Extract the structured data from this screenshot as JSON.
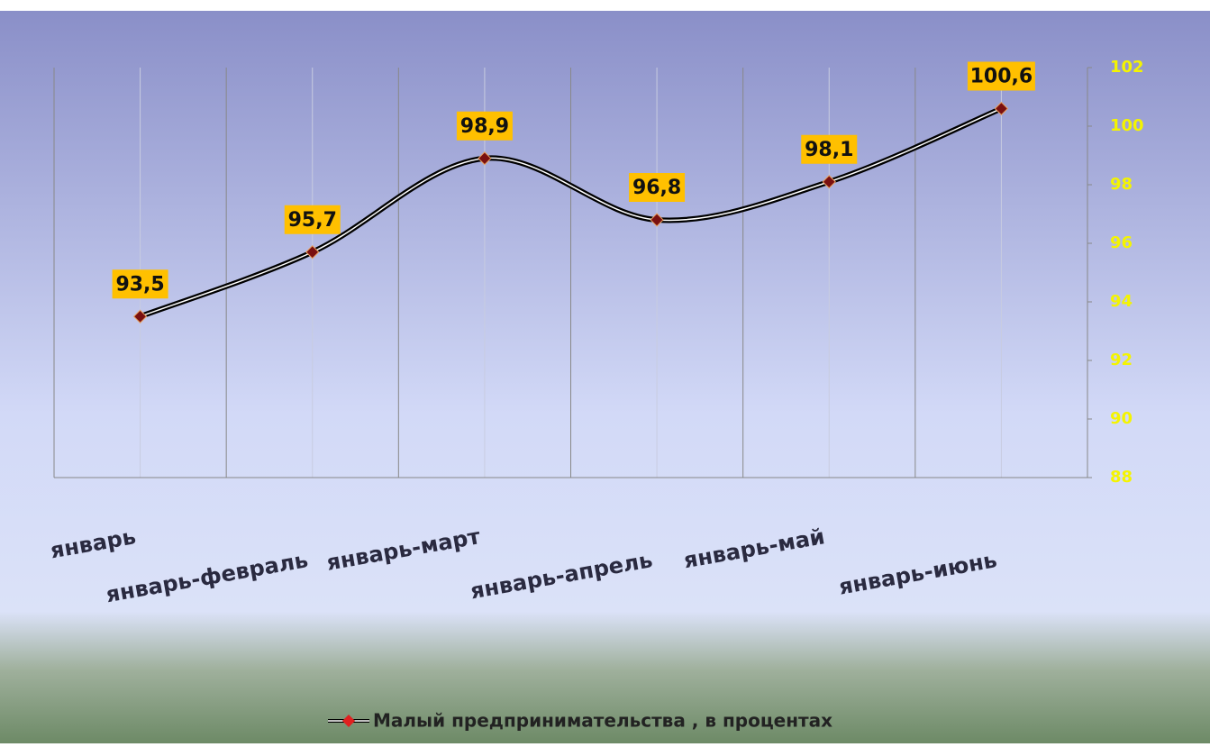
{
  "chart_data": {
    "type": "line",
    "categories": [
      "январь",
      "январь-февраль",
      "январь-март",
      "январь-апрель",
      "январь-май",
      "январь-июнь"
    ],
    "series": [
      {
        "name": "Малый предпринимательства , в процентах",
        "color": "#000000",
        "marker_color": "#7a1010",
        "values": [
          93.5,
          95.7,
          98.9,
          96.8,
          98.1,
          100.6
        ],
        "value_labels": [
          "93,5",
          "95,7",
          "98,9",
          "96,8",
          "98,1",
          "100,6"
        ]
      }
    ],
    "ylim": [
      88,
      102
    ],
    "yticks": [
      88,
      90,
      92,
      94,
      96,
      98,
      100,
      102
    ],
    "y_axis_side": "right",
    "grid": true,
    "smooth": true,
    "legend": "bottom"
  }
}
